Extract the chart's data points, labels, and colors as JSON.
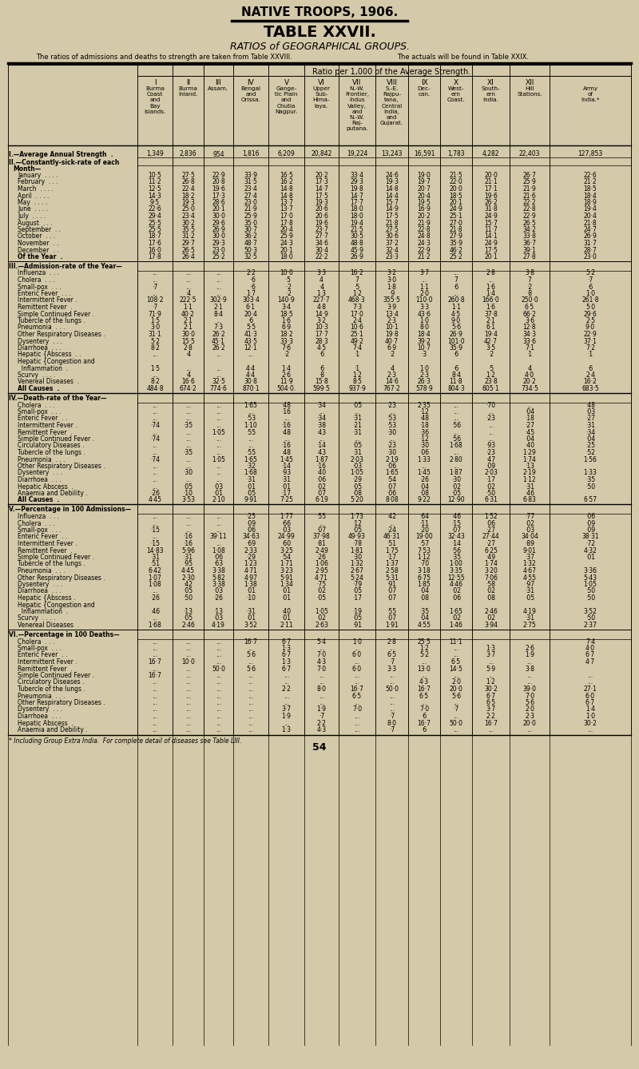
{
  "bg_color": "#d4c9a8",
  "title1": "NATIVE TROOPS, 1906.",
  "title2": "TABLE XXVII.",
  "subtitle": "RATIOS of GEOGRAPHICAL GROUPS.",
  "note1": "The ratios of admissions and deaths to strength are taken from Table XXVIII.",
  "note2": "The actuals will be found in Table XXIX.",
  "ratio_header": "Ratio per 1,000 of the Average Strength.",
  "footer": "* Including Group Extra India.  For complete detail of diseases see Table LIII.",
  "page_num": "54"
}
